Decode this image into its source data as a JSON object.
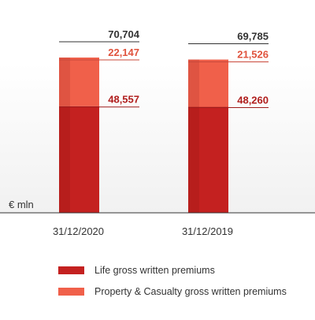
{
  "chart_data": {
    "type": "bar",
    "stacked": true,
    "unit_label": "€ mln",
    "categories": [
      "31/12/2020",
      "31/12/2019"
    ],
    "totals": [
      70704,
      69785
    ],
    "total_labels": [
      "70,704",
      "69,785"
    ],
    "series": [
      {
        "name": "Life gross written premiums",
        "values": [
          48557,
          48260
        ],
        "labels": [
          "48,557",
          "48,260"
        ],
        "color": "#c42120"
      },
      {
        "name": "Property & Casualty gross written premiums",
        "values": [
          22147,
          21526
        ],
        "labels": [
          "22,147",
          "21,526"
        ],
        "color": "#f0604a"
      }
    ],
    "total_label_color": "#333333",
    "legend_position": "bottom-left"
  }
}
